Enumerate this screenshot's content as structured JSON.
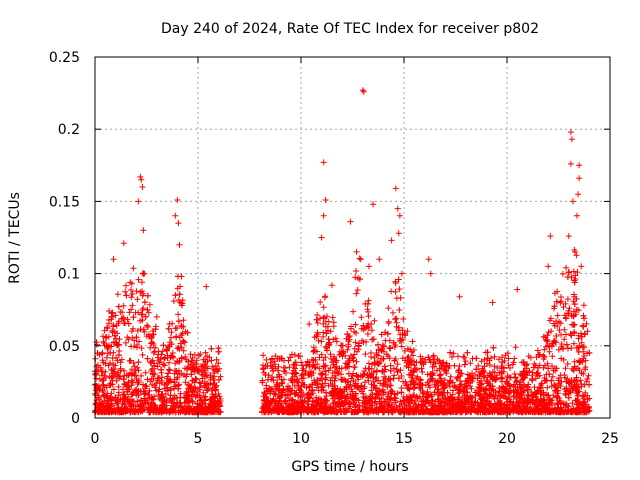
{
  "chart_data": {
    "type": "scatter",
    "title": "Day 240 of 2024, Rate Of TEC Index for receiver p802",
    "xlabel": "GPS time / hours",
    "ylabel": "ROTI / TECUs",
    "xlim": [
      0,
      25
    ],
    "ylim": [
      0,
      0.25
    ],
    "xticks": [
      "0",
      "5",
      "10",
      "15",
      "20",
      "25"
    ],
    "yticks": [
      "0",
      "0.05",
      "0.1",
      "0.15",
      "0.2",
      "0.25"
    ],
    "grid": true,
    "marker": "+",
    "color": "#ff0000",
    "gaps": [
      [
        6.1,
        8.1
      ]
    ],
    "points": [
      [
        0.9,
        0.11
      ],
      [
        1.4,
        0.121
      ],
      [
        2.1,
        0.15
      ],
      [
        2.2,
        0.167
      ],
      [
        2.25,
        0.165
      ],
      [
        2.3,
        0.16
      ],
      [
        2.35,
        0.13
      ],
      [
        2.4,
        0.1
      ],
      [
        3.0,
        0.07
      ],
      [
        3.9,
        0.14
      ],
      [
        4.0,
        0.151
      ],
      [
        4.05,
        0.135
      ],
      [
        4.1,
        0.12
      ],
      [
        4.2,
        0.098
      ],
      [
        5.4,
        0.091
      ],
      [
        10.4,
        0.065
      ],
      [
        11.1,
        0.177
      ],
      [
        11.2,
        0.151
      ],
      [
        11.1,
        0.14
      ],
      [
        11.0,
        0.125
      ],
      [
        11.5,
        0.092
      ],
      [
        12.4,
        0.136
      ],
      [
        12.7,
        0.115
      ],
      [
        12.9,
        0.11
      ],
      [
        13.0,
        0.227
      ],
      [
        13.05,
        0.226
      ],
      [
        13.3,
        0.105
      ],
      [
        13.5,
        0.148
      ],
      [
        13.8,
        0.11
      ],
      [
        14.4,
        0.123
      ],
      [
        14.6,
        0.159
      ],
      [
        14.7,
        0.145
      ],
      [
        14.8,
        0.14
      ],
      [
        14.75,
        0.128
      ],
      [
        14.9,
        0.1
      ],
      [
        16.2,
        0.11
      ],
      [
        16.3,
        0.1
      ],
      [
        17.7,
        0.084
      ],
      [
        19.3,
        0.08
      ],
      [
        20.5,
        0.089
      ],
      [
        22.1,
        0.126
      ],
      [
        22.0,
        0.105
      ],
      [
        23.1,
        0.198
      ],
      [
        23.15,
        0.193
      ],
      [
        23.1,
        0.176
      ],
      [
        23.2,
        0.15
      ],
      [
        23.5,
        0.175
      ],
      [
        23.5,
        0.166
      ],
      [
        23.45,
        0.155
      ],
      [
        23.4,
        0.14
      ],
      [
        23.0,
        0.126
      ],
      [
        23.3,
        0.115
      ],
      [
        23.6,
        0.105
      ]
    ]
  }
}
